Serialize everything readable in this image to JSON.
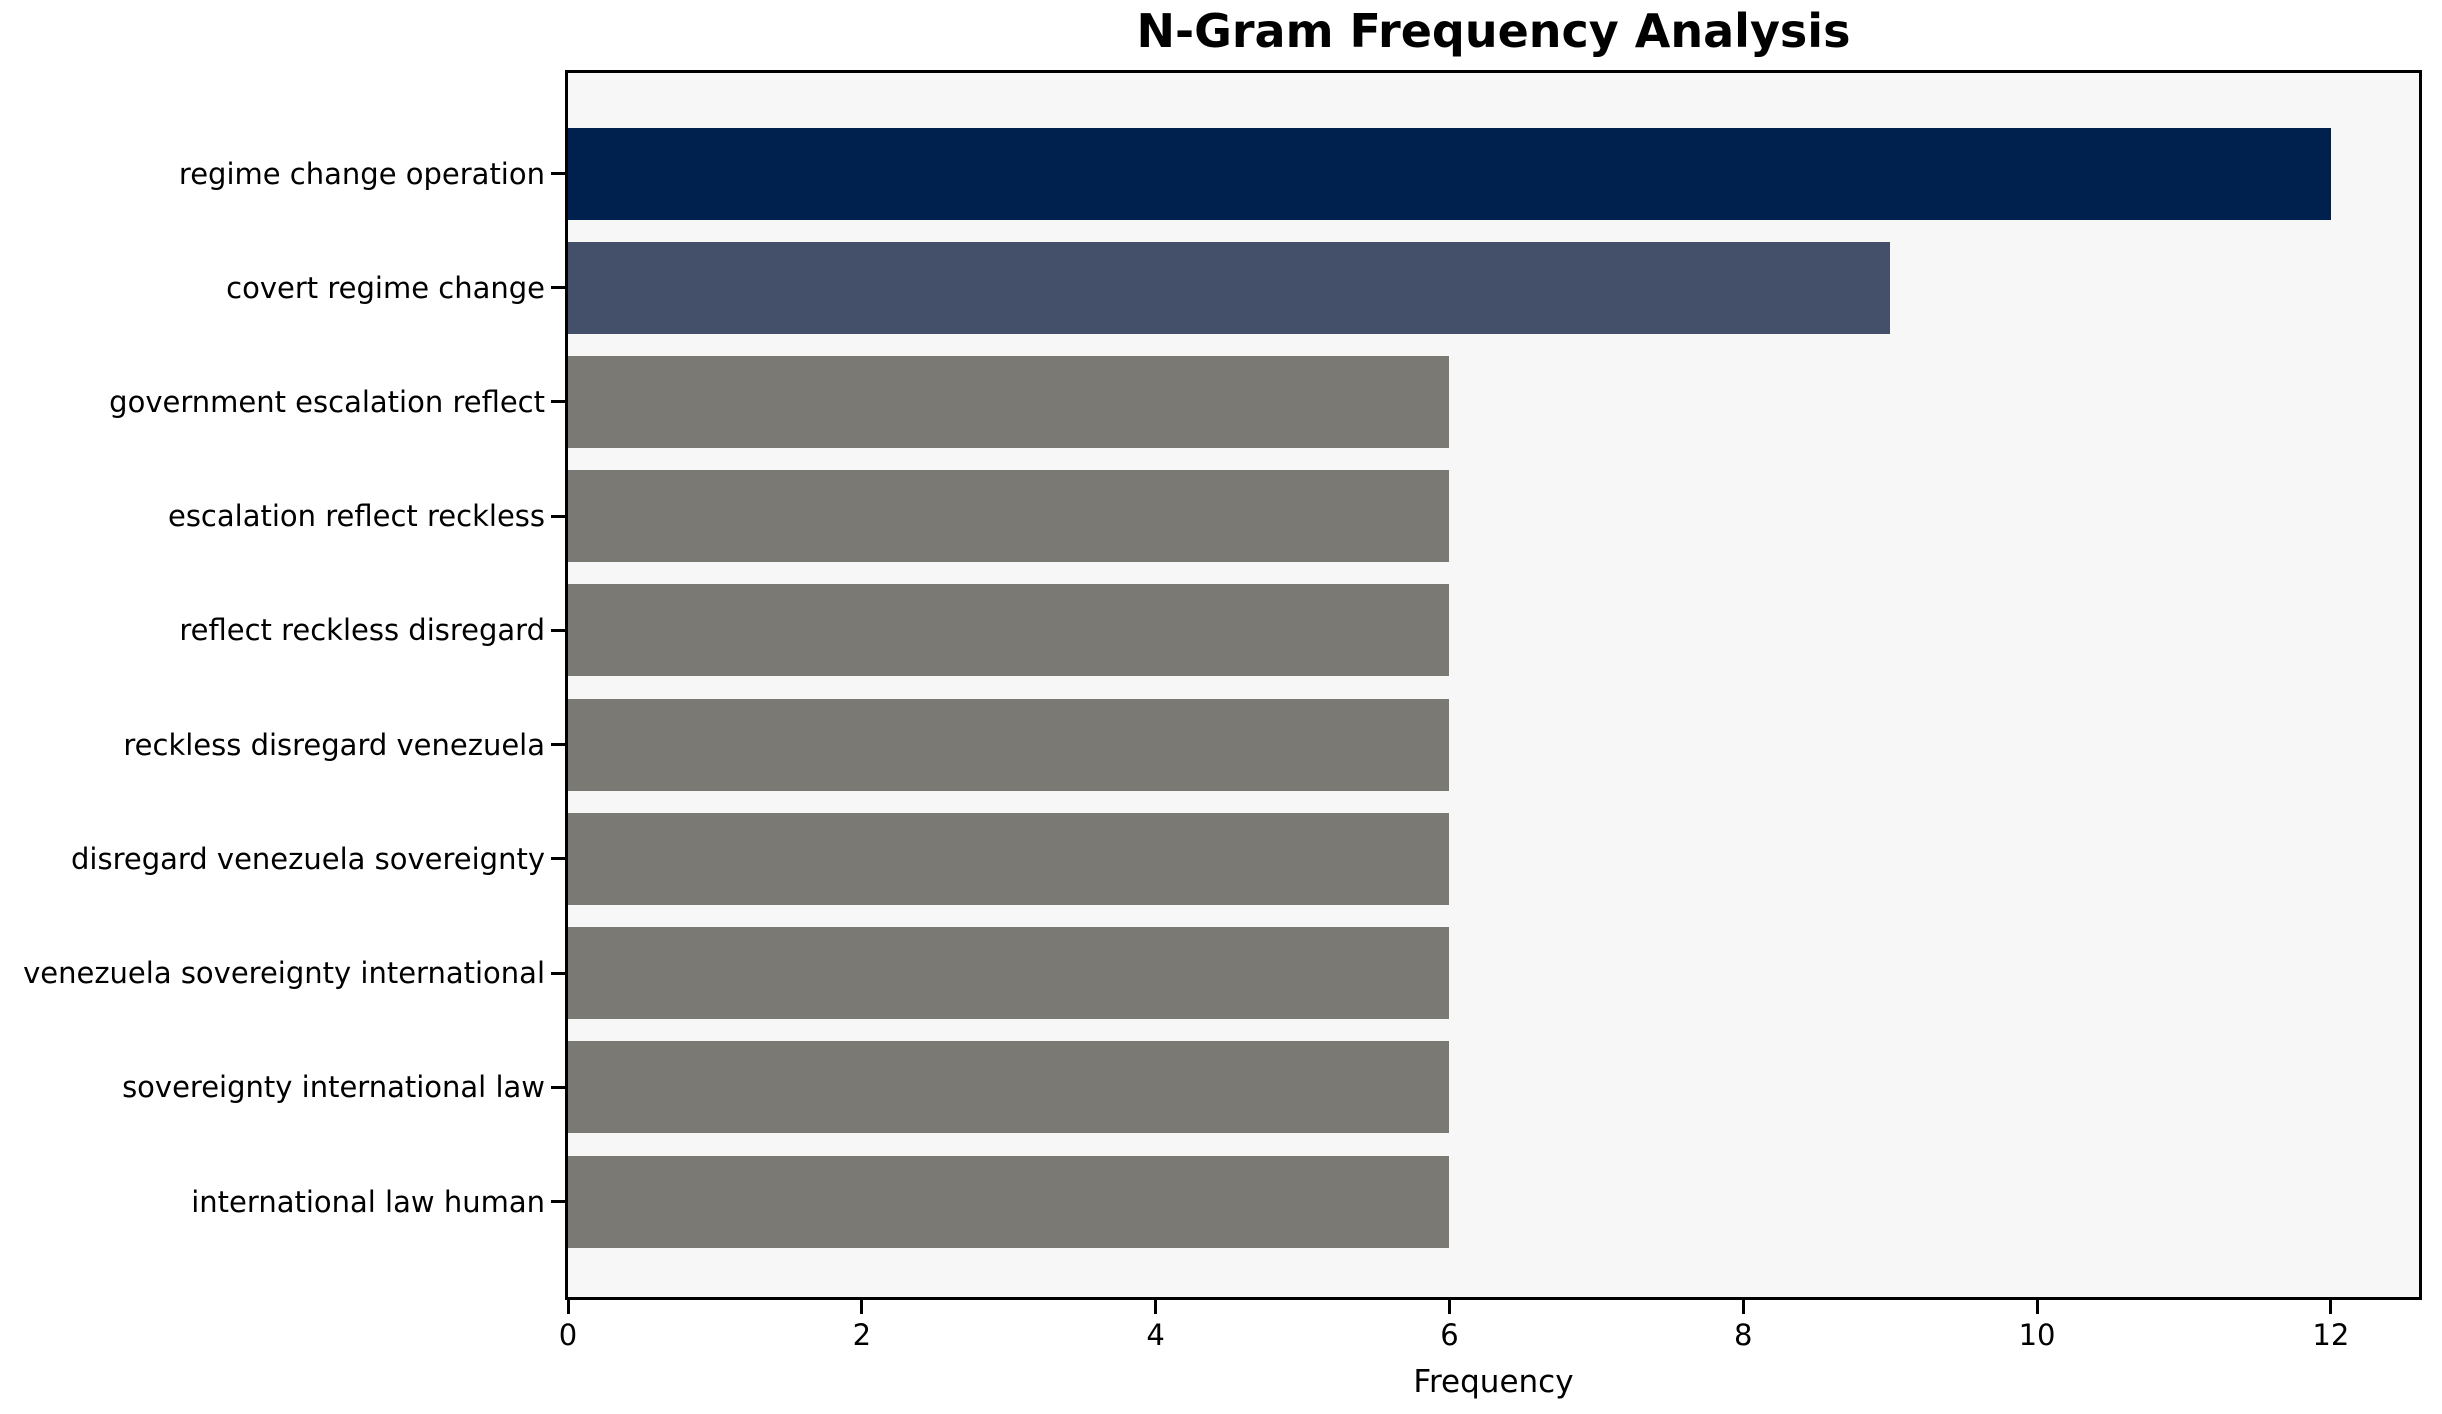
{
  "chart_data": {
    "type": "bar",
    "orientation": "horizontal",
    "title": "N-Gram Frequency Analysis",
    "xlabel": "Frequency",
    "ylabel": "",
    "categories": [
      "regime change operation",
      "covert regime change",
      "government escalation reflect",
      "escalation reflect reckless",
      "reflect reckless disregard",
      "reckless disregard venezuela",
      "disregard venezuela sovereignty",
      "venezuela sovereignty international",
      "sovereignty international law",
      "international law human"
    ],
    "values": [
      12,
      9,
      6,
      6,
      6,
      6,
      6,
      6,
      6,
      6
    ],
    "bar_colors": [
      "#00214d",
      "#445069",
      "#7b7974",
      "#7b7974",
      "#7b7974",
      "#7b7974",
      "#7b7974",
      "#7b7974",
      "#7b7974",
      "#7b7974"
    ],
    "xticks": [
      0,
      2,
      4,
      6,
      8,
      10,
      12
    ],
    "xlim": [
      0,
      12.6
    ],
    "grid": false,
    "legend": null,
    "plot_background": "#f7f7f7",
    "figure_background": "#ffffff",
    "spine_color": "#000000"
  }
}
